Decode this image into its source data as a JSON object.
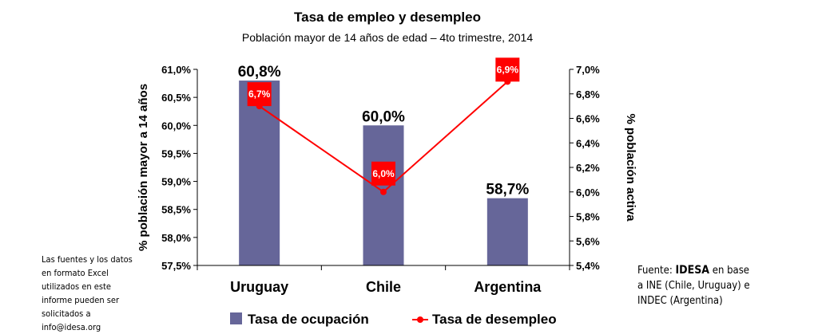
{
  "chart_data": {
    "type": "bar+line",
    "title": "Tasa de empleo  y desempleo",
    "subtitle": "Población mayor de 14 años de edad – 4to trimestre, 2014",
    "categories": [
      "Uruguay",
      "Chile",
      "Argentina"
    ],
    "series": [
      {
        "name": "Tasa de ocupación",
        "type": "bar",
        "axis": "left",
        "values": [
          60.8,
          60.0,
          58.7
        ],
        "labels": [
          "60,8%",
          "60,0%",
          "58,7%"
        ],
        "color": "#666699"
      },
      {
        "name": "Tasa de desempleo",
        "type": "line",
        "axis": "right",
        "values": [
          6.7,
          6.0,
          6.9
        ],
        "labels": [
          "6,7%",
          "6,0%",
          "6,9%"
        ],
        "color": "#ff0000"
      }
    ],
    "ylabel": "% población mayor a 14 años",
    "ylabel_right": "% población activa",
    "ylim": [
      57.5,
      61.0
    ],
    "ylim_right": [
      5.4,
      7.0
    ],
    "yticks": [
      "57,5%",
      "58,0%",
      "58,5%",
      "59,0%",
      "59,5%",
      "60,0%",
      "60,5%",
      "61,0%"
    ],
    "yticks_right": [
      "5,4%",
      "5,6%",
      "5,8%",
      "6,0%",
      "6,2%",
      "6,4%",
      "6,6%",
      "6,8%",
      "7,0%"
    ],
    "grid": false,
    "legend": "bottom"
  },
  "notes": {
    "left": "Las fuentes y los datos en formato Excel utilizados en este informe pueden ser solicitados a info@idesa.org",
    "right_prefix": "Fuente: ",
    "right_bold": "IDESA",
    "right_suffix": " en base a INE (Chile, Uruguay) e INDEC (Argentina)"
  }
}
